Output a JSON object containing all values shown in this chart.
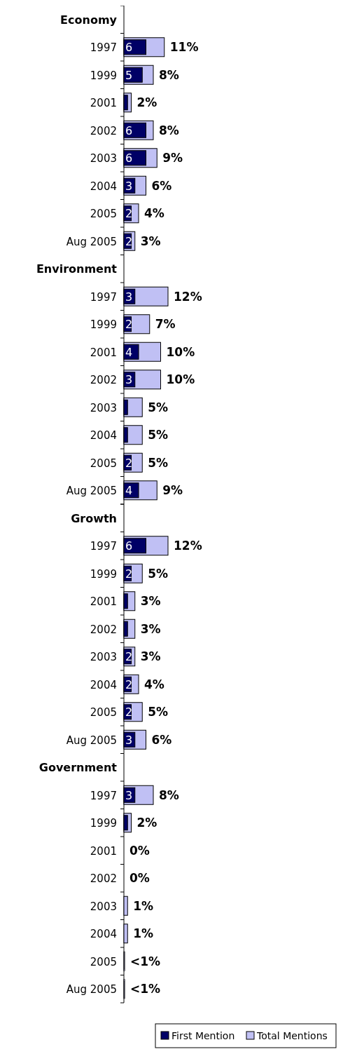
{
  "chart_data": [
    {
      "type": "bar",
      "orientation": "horizontal",
      "title": "Economy",
      "categories": [
        "1997",
        "1999",
        "2001",
        "2002",
        "2003",
        "2004",
        "2005",
        "Aug 2005"
      ],
      "series": [
        {
          "color": "#c0c0f4",
          "values": [
            11,
            8,
            2,
            8,
            9,
            6,
            4,
            3
          ],
          "value_labels": [
            "11%",
            "8%",
            "2%",
            "8%",
            "9%",
            "6%",
            "4%",
            "3%"
          ]
        },
        {
          "color": "#000066",
          "values": [
            6,
            5,
            1,
            6,
            6,
            3,
            2,
            2
          ],
          "value_labels": [
            "6",
            "5",
            null,
            "6",
            "6",
            "3",
            "2",
            "2"
          ]
        }
      ]
    },
    {
      "type": "bar",
      "orientation": "horizontal",
      "title": "Environment",
      "categories": [
        "1997",
        "1999",
        "2001",
        "2002",
        "2003",
        "2004",
        "2005",
        "Aug 2005"
      ],
      "series": [
        {
          "color": "#c0c0f4",
          "values": [
            12,
            7,
            10,
            10,
            5,
            5,
            5,
            9
          ],
          "value_labels": [
            "12%",
            "7%",
            "10%",
            "10%",
            "5%",
            "5%",
            "5%",
            "9%"
          ]
        },
        {
          "color": "#000066",
          "values": [
            3,
            2,
            4,
            3,
            1,
            1,
            2,
            4
          ],
          "value_labels": [
            "3",
            "2",
            "4",
            "3",
            null,
            null,
            "2",
            "4"
          ]
        }
      ]
    },
    {
      "type": "bar",
      "orientation": "horizontal",
      "title": "Growth",
      "categories": [
        "1997",
        "1999",
        "2001",
        "2002",
        "2003",
        "2004",
        "2005",
        "Aug 2005"
      ],
      "series": [
        {
          "color": "#c0c0f4",
          "values": [
            12,
            5,
            3,
            3,
            3,
            4,
            5,
            6
          ],
          "value_labels": [
            "12%",
            "5%",
            "3%",
            "3%",
            "3%",
            "4%",
            "5%",
            "6%"
          ]
        },
        {
          "color": "#000066",
          "values": [
            6,
            2,
            1,
            1,
            2,
            2,
            2,
            3
          ],
          "value_labels": [
            "6",
            "2",
            null,
            null,
            "2",
            "2",
            "2",
            "3"
          ]
        }
      ]
    },
    {
      "type": "bar",
      "orientation": "horizontal",
      "title": "Government",
      "categories": [
        "1997",
        "1999",
        "2001",
        "2002",
        "2003",
        "2004",
        "2005",
        "Aug 2005"
      ],
      "legend": "bottom",
      "series": [
        {
          "name": "Total Mentions",
          "color": "#c0c0f4",
          "values": [
            8,
            2,
            0,
            0,
            1,
            1,
            0.2,
            0.2
          ],
          "value_labels": [
            "8%",
            "2%",
            "0%",
            "0%",
            "1%",
            "1%",
            "<1%",
            "<1%"
          ]
        },
        {
          "name": "First Mention",
          "color": "#000066",
          "values": [
            3,
            1,
            0,
            0,
            null,
            null,
            null,
            null
          ],
          "value_labels": [
            "3",
            null,
            null,
            null,
            null,
            null,
            null,
            null
          ]
        }
      ]
    }
  ]
}
